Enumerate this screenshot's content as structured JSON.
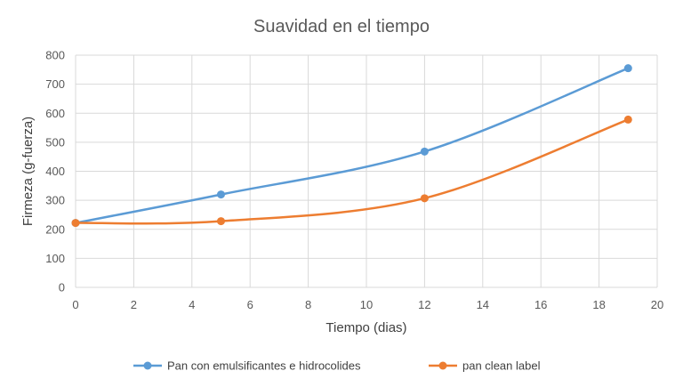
{
  "chart_data": {
    "type": "line",
    "title": "Suavidad en el tiempo",
    "xlabel": "Tiempo (dias)",
    "ylabel": "Firmeza (g-fuerza)",
    "xlim": [
      0,
      20
    ],
    "ylim": [
      0,
      800
    ],
    "x_ticks": [
      0,
      2,
      4,
      6,
      8,
      10,
      12,
      14,
      16,
      18,
      20
    ],
    "y_ticks": [
      0,
      100,
      200,
      300,
      400,
      500,
      600,
      700,
      800
    ],
    "grid": true,
    "smooth": true,
    "legend_position": "bottom",
    "series": [
      {
        "name": "Pan con emulsificantes e hidrocolides",
        "color": "#5b9bd5",
        "points": [
          [
            0,
            222
          ],
          [
            5,
            320
          ],
          [
            12,
            468
          ],
          [
            19,
            755
          ]
        ]
      },
      {
        "name": "pan clean label",
        "color": "#ed7d31",
        "points": [
          [
            0,
            222
          ],
          [
            5,
            228
          ],
          [
            12,
            307
          ],
          [
            19,
            578
          ]
        ]
      }
    ]
  }
}
